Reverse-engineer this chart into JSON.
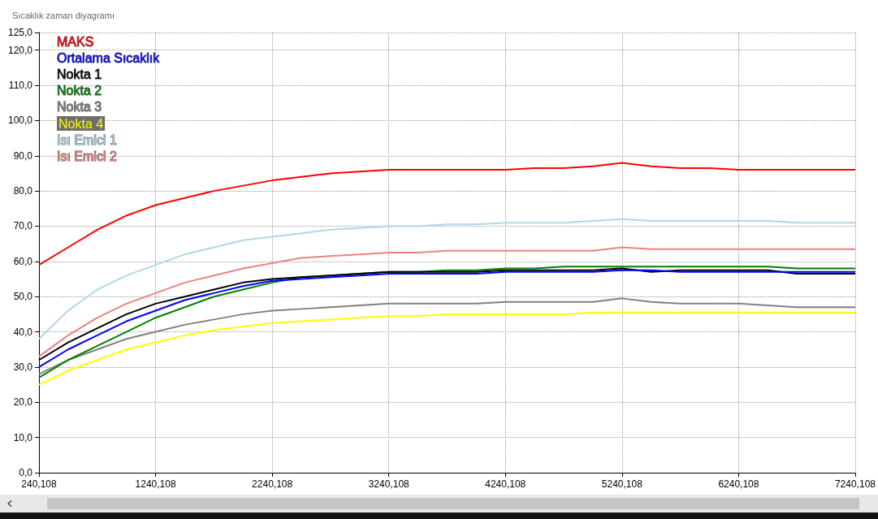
{
  "chart_data": {
    "type": "line",
    "title": "Sıcaklık zaman diyagramı",
    "categories": [
      "240,108",
      null,
      null,
      null,
      "1240,108",
      null,
      null,
      null,
      "2240,108",
      null,
      null,
      null,
      "3240,108",
      null,
      null,
      null,
      "4240,108",
      null,
      null,
      null,
      "5240,108",
      null,
      null,
      null,
      "6240,108",
      null,
      null,
      null,
      "7240,108"
    ],
    "series": [
      {
        "name": "MAKS",
        "color": "#ff0000",
        "values": [
          59,
          64,
          69,
          73,
          76,
          78,
          80,
          81.5,
          83,
          84,
          85,
          85.5,
          86,
          86,
          86,
          86,
          86,
          86.5,
          86.5,
          87,
          88,
          87,
          86.5,
          86.5,
          86,
          86,
          86,
          86,
          86
        ]
      },
      {
        "name": "Ortalama Sıcaklık",
        "color": "#0000ff",
        "values": [
          30,
          35,
          39,
          43,
          46,
          49,
          51,
          53,
          54.5,
          55,
          55.5,
          56,
          56.5,
          56.5,
          56.5,
          56.5,
          57,
          57,
          57,
          57,
          57.5,
          57.5,
          57,
          57,
          57,
          57,
          57,
          57,
          57
        ]
      },
      {
        "name": "Nokta 1",
        "color": "#000000",
        "values": [
          32,
          37,
          41,
          45,
          48,
          50,
          52,
          54,
          55,
          55.5,
          56,
          56.5,
          57,
          57,
          57,
          57,
          57.5,
          57.5,
          57.5,
          57.5,
          58,
          57,
          57.5,
          57.5,
          57.5,
          57.5,
          56.5,
          56.5,
          56.5
        ]
      },
      {
        "name": "Nokta 2",
        "color": "#008000",
        "values": [
          27,
          32,
          36,
          40,
          44,
          47,
          50,
          52,
          54,
          55.5,
          56,
          56.5,
          57,
          57,
          57.5,
          57.5,
          58,
          58,
          58.5,
          58.5,
          58.5,
          58.5,
          58.5,
          58.5,
          58.5,
          58.5,
          58,
          58,
          58
        ]
      },
      {
        "name": "Nokta 3",
        "color": "#808080",
        "values": [
          28,
          32,
          35,
          38,
          40,
          42,
          43.5,
          45,
          46,
          46.5,
          47,
          47.5,
          48,
          48,
          48,
          48,
          48.5,
          48.5,
          48.5,
          48.5,
          49.5,
          48.5,
          48,
          48,
          48,
          47.5,
          47,
          47,
          47
        ]
      },
      {
        "name": "Nokta 4",
        "color": "#ffff00",
        "values": [
          25,
          29,
          32,
          35,
          37,
          39,
          40.5,
          41.5,
          42.5,
          43,
          43.5,
          44,
          44.5,
          44.5,
          45,
          45,
          45,
          45,
          45,
          45.5,
          45.5,
          45.5,
          45.5,
          45.5,
          45.5,
          45.5,
          45.5,
          45.5,
          45.5
        ]
      },
      {
        "name": "Isı Emici 1",
        "color": "#add8e6",
        "values": [
          38,
          46,
          52,
          56,
          59,
          62,
          64,
          66,
          67,
          68,
          69,
          69.5,
          70,
          70,
          70.5,
          70.5,
          71,
          71,
          71,
          71.5,
          72,
          71.5,
          71.5,
          71.5,
          71.5,
          71.5,
          71,
          71,
          71
        ]
      },
      {
        "name": "Isı Emici 2",
        "color": "#f08080",
        "values": [
          33,
          39,
          44,
          48,
          51,
          54,
          56,
          58,
          59.5,
          61,
          61.5,
          62,
          62.5,
          62.5,
          63,
          63,
          63,
          63,
          63,
          63,
          64,
          63.5,
          63.5,
          63.5,
          63.5,
          63.5,
          63.5,
          63.5,
          63.5
        ]
      }
    ],
    "ylim": [
      0,
      125
    ],
    "yticks": [
      {
        "value": 0,
        "label": "0,0"
      },
      {
        "value": 10,
        "label": "10,0"
      },
      {
        "value": 20,
        "label": "20,0"
      },
      {
        "value": 30,
        "label": "30,0"
      },
      {
        "value": 40,
        "label": "40,0"
      },
      {
        "value": 50,
        "label": "50,0"
      },
      {
        "value": 60,
        "label": "60,0"
      },
      {
        "value": 70,
        "label": "70,0"
      },
      {
        "value": 80,
        "label": "80,0"
      },
      {
        "value": 90,
        "label": "90,0"
      },
      {
        "value": 100,
        "label": "100,0"
      },
      {
        "value": 110,
        "label": "110,0"
      },
      {
        "value": 120,
        "label": "120,0"
      },
      {
        "value": 125,
        "label": "125,0"
      }
    ],
    "grid": true,
    "legend": "top left"
  }
}
